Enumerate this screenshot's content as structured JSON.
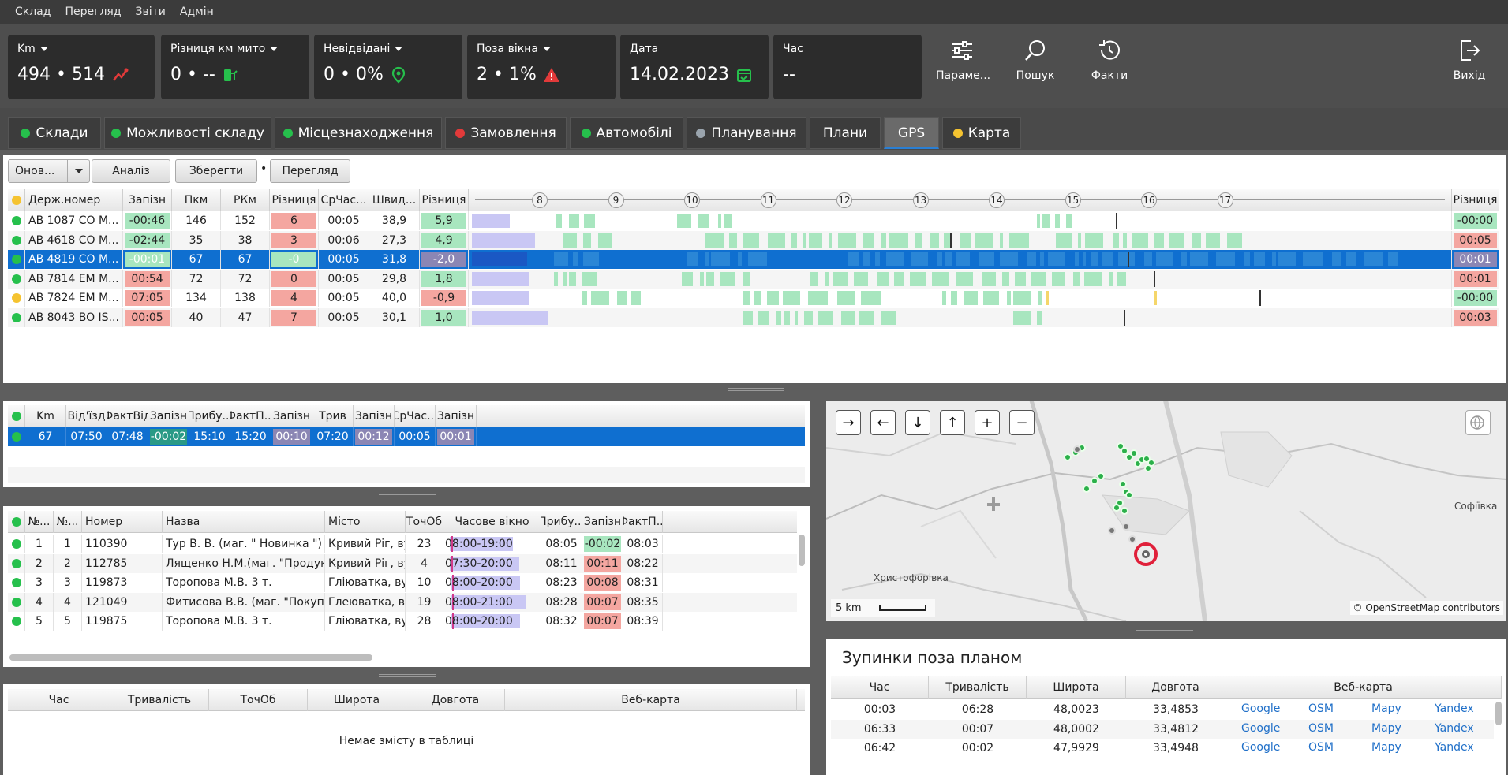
{
  "menu": [
    "Склад",
    "Перегляд",
    "Звіти",
    "Адмін"
  ],
  "kpis": [
    {
      "label": "Km",
      "value": "494 • 514",
      "icon": "route-icon",
      "icon_color": "#e23a3a",
      "dropdown": true
    },
    {
      "label": "Різниця км мито",
      "value": "0 • --",
      "icon": "fuel-icon",
      "icon_color": "#26c04c",
      "dropdown": true
    },
    {
      "label": "Невідвідані",
      "value": "0 • 0%",
      "icon": "pin-icon",
      "icon_color": "#26c04c",
      "dropdown": true
    },
    {
      "label": "Поза вікна",
      "value": "2 • 1%",
      "icon": "warning-icon",
      "icon_color": "#e23a3a",
      "dropdown": true
    },
    {
      "label": "Дата",
      "value": "14.02.2023",
      "icon": "calendar-icon",
      "icon_color": "#26c04c",
      "dropdown": false
    },
    {
      "label": "Час",
      "value": "--",
      "icon": "",
      "dropdown": false
    }
  ],
  "toolbar": {
    "params": "Параме...",
    "search": "Пошук",
    "facts": "Факти",
    "exit": "Вихід"
  },
  "tabs": [
    {
      "label": "Склади",
      "dot": "g"
    },
    {
      "label": "Можливості складу",
      "dot": "g"
    },
    {
      "label": "Місцезнаходження",
      "dot": "g"
    },
    {
      "label": "Замовлення",
      "dot": "r"
    },
    {
      "label": "Автомобілі",
      "dot": "g"
    },
    {
      "label": "Планування",
      "dot": "gr"
    },
    {
      "label": "Плани",
      "dot": ""
    },
    {
      "label": "GPS",
      "dot": ""
    },
    {
      "label": "Карта",
      "dot": "y"
    }
  ],
  "actions": {
    "refresh": "Онов...",
    "analyze": "Аналіз",
    "save": "Зберегти",
    "separator": "•",
    "view": "Перегляд"
  },
  "gps_table": {
    "headers": [
      "Держ.номер",
      "Запізн",
      "Пкм",
      "РКм",
      "Різниця",
      "СрЧас...",
      "Швид...",
      "Різниця",
      "Різниця"
    ],
    "hours": [
      "8",
      "9",
      "10",
      "11",
      "12",
      "13",
      "14",
      "15",
      "16",
      "17"
    ],
    "rows": [
      {
        "dot": "g",
        "plate": "AB 1087 CO M...",
        "late": "-00:46",
        "lc": "g",
        "pkm": "146",
        "rkm": "152",
        "diff": "6",
        "dc": "r",
        "avg": "00:05",
        "speed": "38,9",
        "d2": "5,9",
        "d2c": "g",
        "end": "-00:00",
        "ec": "g",
        "sel": false
      },
      {
        "dot": "g",
        "plate": "AB 4618 CO M...",
        "late": "-02:44",
        "lc": "g",
        "pkm": "35",
        "rkm": "38",
        "diff": "3",
        "dc": "r",
        "avg": "00:06",
        "speed": "27,3",
        "d2": "4,9",
        "d2c": "g",
        "end": "00:05",
        "ec": "r",
        "sel": false
      },
      {
        "dot": "g",
        "plate": "AB 4819 CO M...",
        "late": "-00:01",
        "lc": "g",
        "pkm": "67",
        "rkm": "67",
        "diff": "-0",
        "dc": "g",
        "avg": "00:05",
        "speed": "31,8",
        "d2": "-2,0",
        "d2c": "p",
        "end": "00:01",
        "ec": "p",
        "sel": true
      },
      {
        "dot": "g",
        "plate": "AB 7814 EM M...",
        "late": "00:54",
        "lc": "r",
        "pkm": "72",
        "rkm": "72",
        "diff": "0",
        "dc": "r",
        "avg": "00:05",
        "speed": "29,8",
        "d2": "1,8",
        "d2c": "g",
        "end": "00:01",
        "ec": "r",
        "sel": false
      },
      {
        "dot": "y",
        "plate": "AB 7824 EM M...",
        "late": "07:05",
        "lc": "r",
        "pkm": "134",
        "rkm": "138",
        "diff": "4",
        "dc": "r",
        "avg": "00:05",
        "speed": "40,0",
        "d2": "-0,9",
        "d2c": "r",
        "end": "-00:00",
        "ec": "g",
        "sel": false
      },
      {
        "dot": "g",
        "plate": "AB 8043 BO IS...",
        "late": "00:05",
        "lc": "r",
        "pkm": "40",
        "rkm": "47",
        "diff": "7",
        "dc": "r",
        "avg": "00:05",
        "speed": "30,1",
        "d2": "1,0",
        "d2c": "g",
        "end": "00:03",
        "ec": "r",
        "sel": false
      }
    ]
  },
  "trip_table": {
    "headers": [
      "Km",
      "Від'їзд",
      "ФактВід",
      "Запізн",
      "Прибу...",
      "ФактП...",
      "Запізн",
      "Трив",
      "Запізн",
      "СрЧас...",
      "Запізн"
    ],
    "row": [
      "67",
      "07:50",
      "07:48",
      "-00:02",
      "15:10",
      "15:20",
      "00:10",
      "07:20",
      "00:12",
      "00:05",
      "00:01"
    ]
  },
  "stops_table": {
    "headers": [
      "№...",
      "№...",
      "Номер",
      "Назва",
      "Місто",
      "ТочОб",
      "Часове вікно",
      "Прибу...",
      "Запізн",
      "ФактП..."
    ],
    "rows": [
      [
        "1",
        "1",
        "110390",
        "Тур В. В. (маг. \" Новинка \")",
        "Кривий Ріг, вул...",
        "23",
        "08:00-19:00",
        "08:05",
        "-00:02",
        "08:03"
      ],
      [
        "2",
        "2",
        "112785",
        "Лященко Н.М.(маг. \"Продукти\")",
        "Кривий Ріг, вул...",
        "4",
        "07:30-20:00",
        "08:11",
        "00:11",
        "08:22"
      ],
      [
        "3",
        "3",
        "119873",
        "Торопова М.В. 3 т.",
        "Гліюватка, вул....",
        "10",
        "08:00-20:00",
        "08:23",
        "00:08",
        "08:31"
      ],
      [
        "4",
        "4",
        "121049",
        "Фитисова В.В. (маг. \"Покупочка\")",
        "Глеюватка, вул...",
        "19",
        "08:00-21:00",
        "08:28",
        "00:07",
        "08:35"
      ],
      [
        "5",
        "5",
        "119875",
        "Торопова М.В. 3 т.",
        "Гліюватка, вул....",
        "28",
        "08:00-20:00",
        "08:32",
        "00:07",
        "08:39"
      ]
    ],
    "late_colors": [
      "g",
      "r",
      "r",
      "r",
      "r"
    ]
  },
  "events_table": {
    "headers": [
      "Час",
      "Тривалість",
      "ТочОб",
      "Широта",
      "Довгота",
      "Веб-карта"
    ],
    "empty": "Немає змісту в таблиці"
  },
  "map": {
    "controls": [
      "→",
      "←",
      "↓",
      "↑",
      "+",
      "−"
    ],
    "scale": "5 km",
    "attribution": "© OpenStreetMap contributors",
    "labels": {
      "sofiivka": "Софіївка",
      "khrystoforivka": "Христофорівка"
    }
  },
  "unplanned": {
    "title": "Зупинки поза планом",
    "headers": [
      "Час",
      "Тривалість",
      "Широта",
      "Довгота",
      "Веб-карта"
    ],
    "links": [
      "Google",
      "OSM",
      "Mapy",
      "Yandex"
    ],
    "rows": [
      [
        "00:03",
        "06:28",
        "48,0023",
        "33,4853"
      ],
      [
        "06:33",
        "00:07",
        "48,0002",
        "33,4812"
      ],
      [
        "06:42",
        "00:02",
        "47,9929",
        "33,4948"
      ]
    ]
  }
}
